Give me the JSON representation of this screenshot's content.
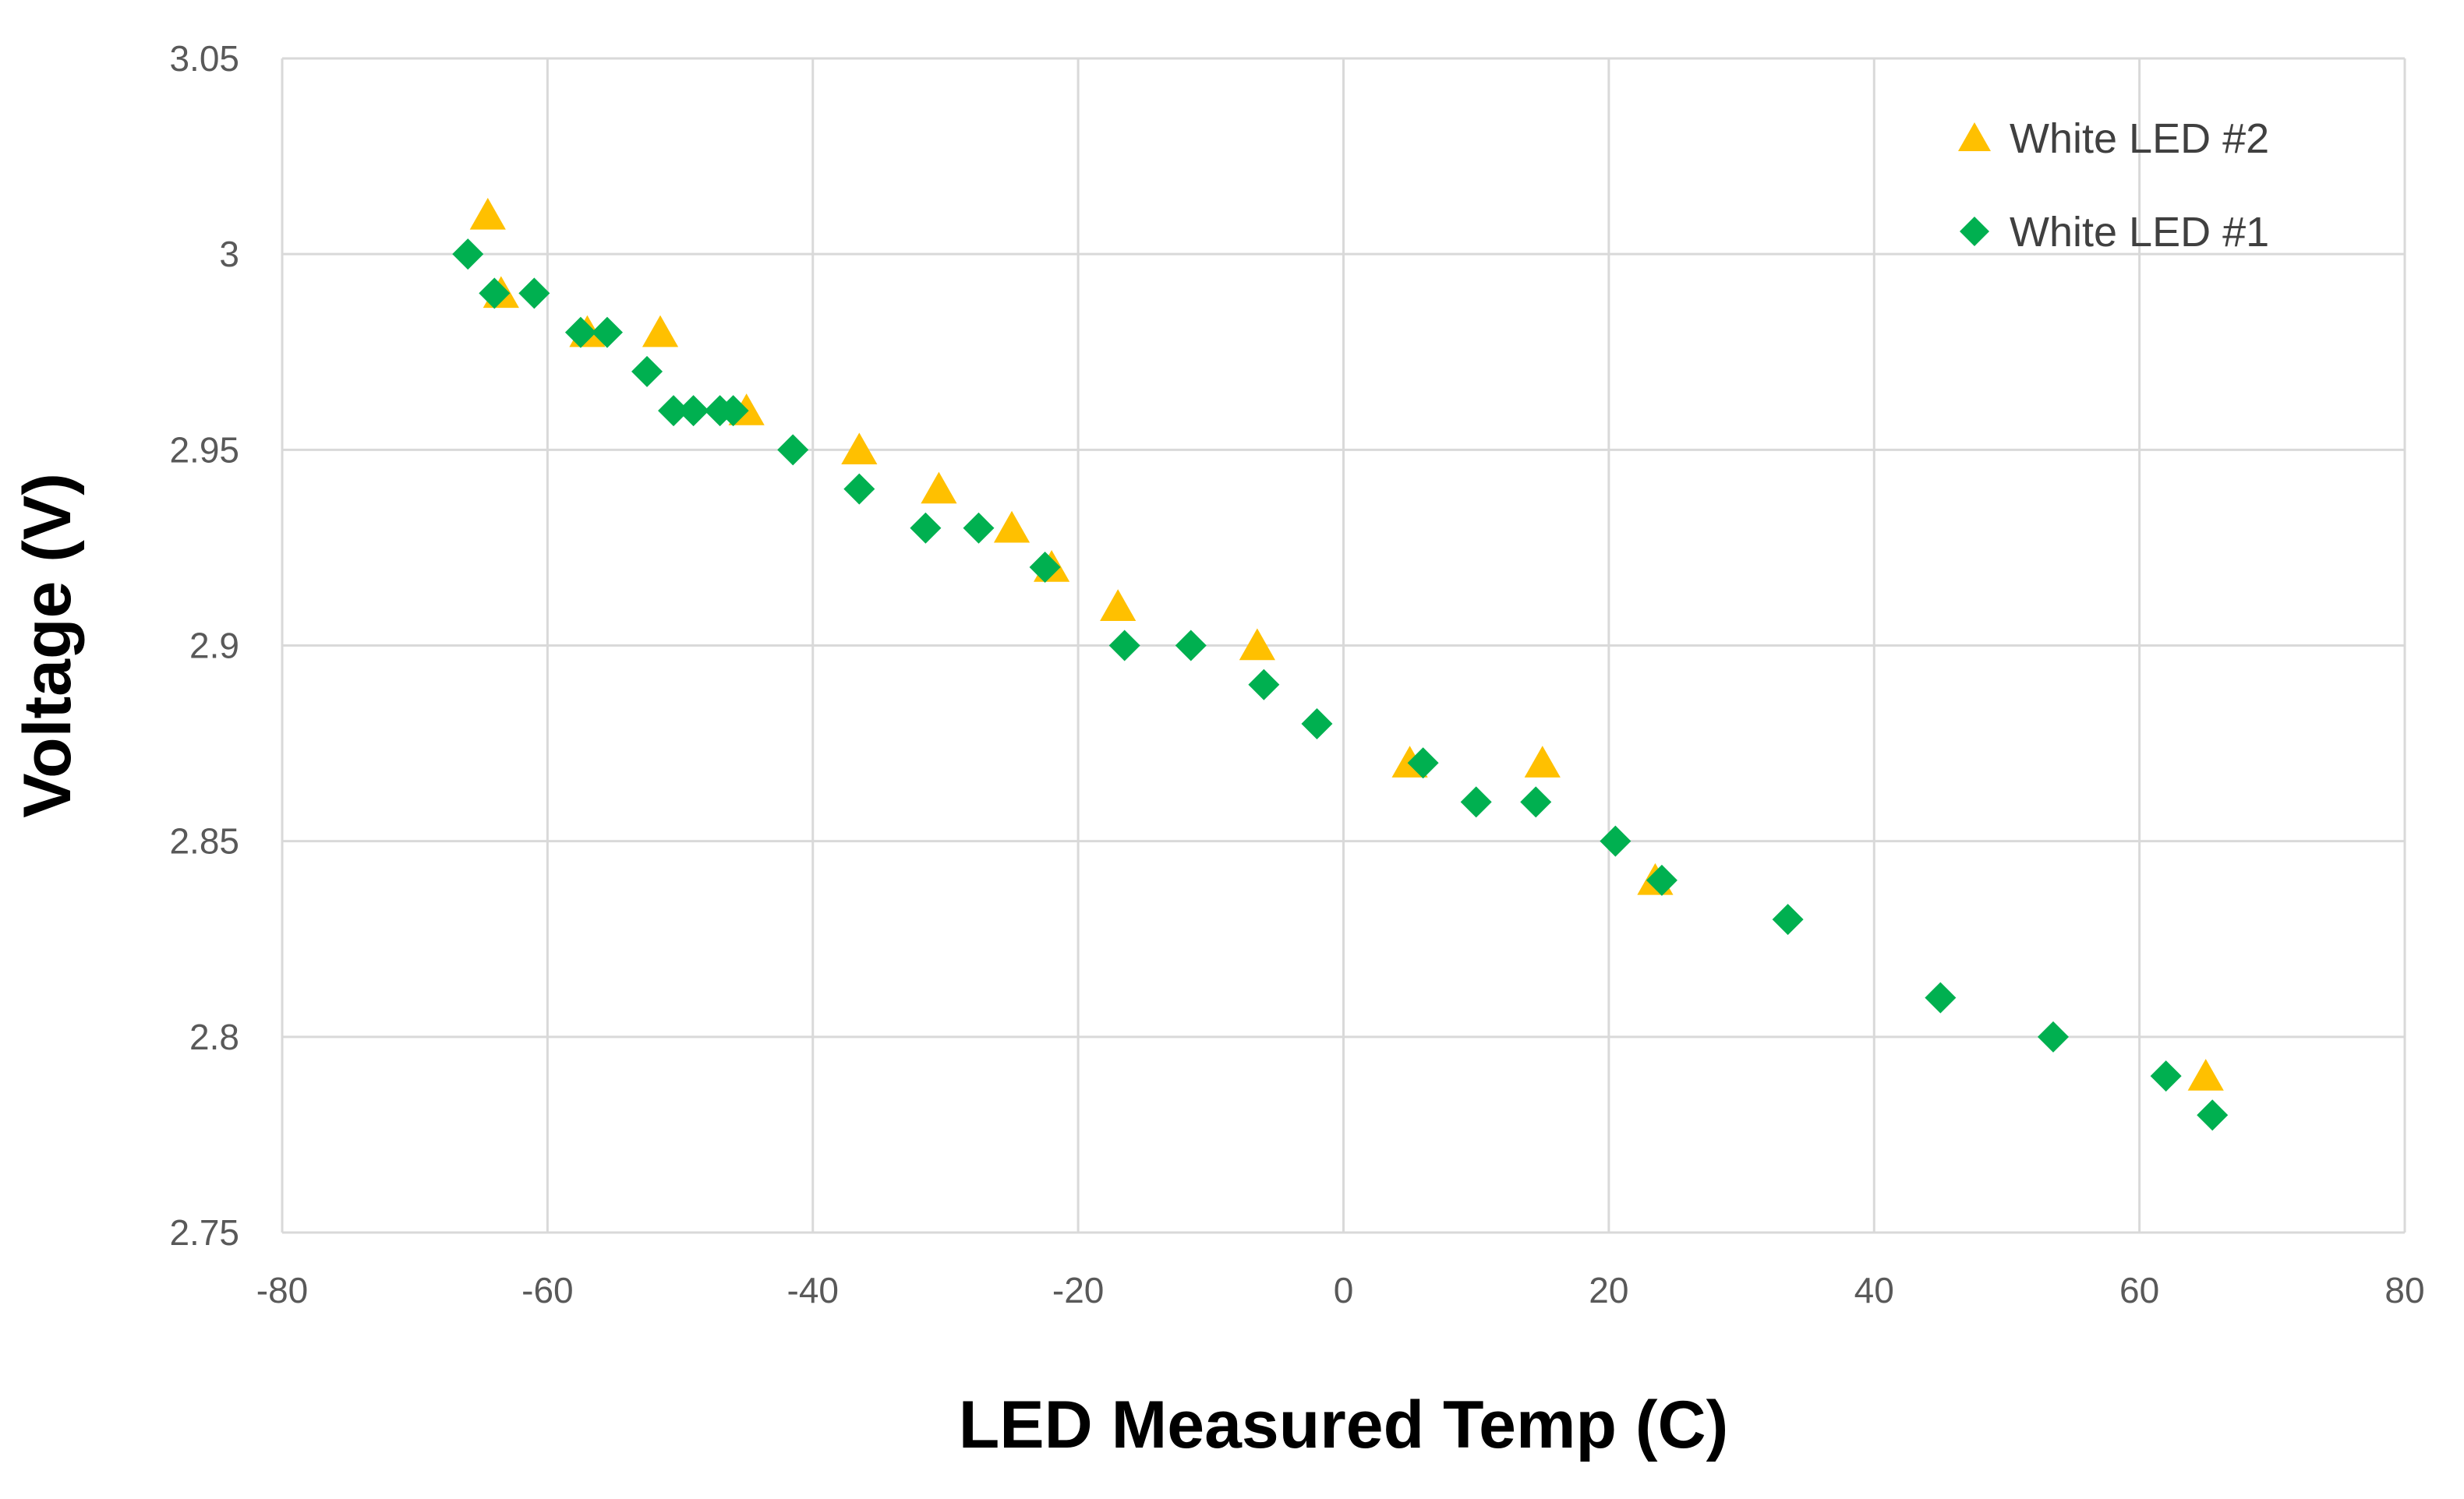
{
  "chart_data": {
    "type": "scatter",
    "xlabel": "LED Measured Temp (C)",
    "ylabel": "Voltage (V)",
    "xlim": [
      -80,
      80
    ],
    "ylim": [
      2.75,
      3.05
    ],
    "x_ticks": [
      "-80",
      "-60",
      "-40",
      "-20",
      "0",
      "20",
      "40",
      "60",
      "80"
    ],
    "y_ticks": [
      "3.05",
      "3",
      "2.95",
      "2.9",
      "2.85",
      "2.8",
      "2.75"
    ],
    "grid": true,
    "legend_position": "top-right",
    "series": [
      {
        "name": "White LED #2",
        "marker": "triangle",
        "color": "#FFC000",
        "points": [
          [
            -64.5,
            3.01
          ],
          [
            -63.5,
            2.99
          ],
          [
            -57,
            2.98
          ],
          [
            -51.5,
            2.98
          ],
          [
            -45,
            2.96
          ],
          [
            -36.5,
            2.95
          ],
          [
            -30.5,
            2.94
          ],
          [
            -25,
            2.93
          ],
          [
            -22,
            2.92
          ],
          [
            -17,
            2.91
          ],
          [
            -6.5,
            2.9
          ],
          [
            5,
            2.87
          ],
          [
            15,
            2.87
          ],
          [
            23.5,
            2.84
          ],
          [
            65,
            2.79
          ]
        ]
      },
      {
        "name": "White LED #1",
        "marker": "diamond",
        "color": "#00B050",
        "points": [
          [
            -66,
            3.0
          ],
          [
            -64,
            2.99
          ],
          [
            -61,
            2.99
          ],
          [
            -57.5,
            2.98
          ],
          [
            -55.5,
            2.98
          ],
          [
            -52.5,
            2.97
          ],
          [
            -50.5,
            2.96
          ],
          [
            -49,
            2.96
          ],
          [
            -47,
            2.96
          ],
          [
            -46,
            2.96
          ],
          [
            -41.5,
            2.95
          ],
          [
            -36.5,
            2.94
          ],
          [
            -31.5,
            2.93
          ],
          [
            -27.5,
            2.93
          ],
          [
            -22.5,
            2.92
          ],
          [
            -16.5,
            2.9
          ],
          [
            -11.5,
            2.9
          ],
          [
            -6,
            2.89
          ],
          [
            -2,
            2.88
          ],
          [
            6,
            2.87
          ],
          [
            10,
            2.86
          ],
          [
            14.5,
            2.86
          ],
          [
            20.5,
            2.85
          ],
          [
            24,
            2.84
          ],
          [
            33.5,
            2.83
          ],
          [
            45,
            2.81
          ],
          [
            53.5,
            2.8
          ],
          [
            62,
            2.79
          ],
          [
            65.5,
            2.78
          ]
        ]
      }
    ]
  }
}
